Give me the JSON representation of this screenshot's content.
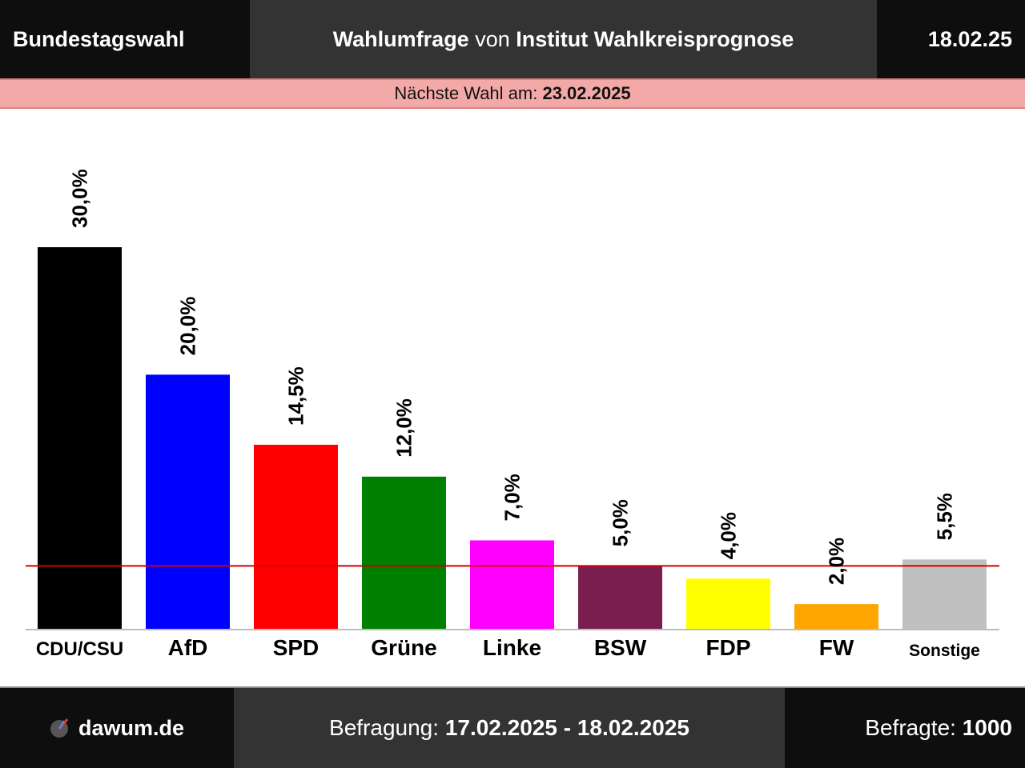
{
  "header": {
    "left": "Bundestagswahl",
    "middle_strong_1": "Wahlumfrage",
    "middle_plain": " von ",
    "middle_strong_2": "Institut Wahlkreisprognose",
    "right": "18.02.25"
  },
  "next_election": {
    "label": "Nächste Wahl am: ",
    "date": "23.02.2025"
  },
  "chart_data": {
    "type": "bar",
    "categories": [
      "CDU/CSU",
      "AfD",
      "SPD",
      "Grüne",
      "Linke",
      "BSW",
      "FDP",
      "FW",
      "Sonstige"
    ],
    "values": [
      30.0,
      20.0,
      14.5,
      12.0,
      7.0,
      5.0,
      4.0,
      2.0,
      5.5
    ],
    "value_labels": [
      "30,0%",
      "20,0%",
      "14,5%",
      "12,0%",
      "7,0%",
      "5,0%",
      "4,0%",
      "2,0%",
      "5,5%"
    ],
    "colors": [
      "#000000",
      "#0000ff",
      "#ff0000",
      "#008000",
      "#ff00ff",
      "#7a1e4f",
      "#ffff00",
      "#ffa500",
      "#c0c0c0"
    ],
    "ylim": [
      0,
      30
    ],
    "threshold": 5.0,
    "threshold_color": "#d00000",
    "grid": false,
    "legend": "none"
  },
  "footer": {
    "site": "dawum.de",
    "survey_label": "Befragung: ",
    "survey_dates": "17.02.2025 - 18.02.2025",
    "respondents_label": "Befragte: ",
    "respondents": "1000"
  }
}
